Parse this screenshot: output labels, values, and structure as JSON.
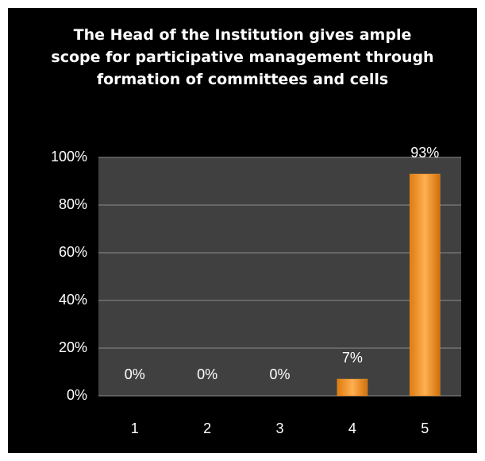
{
  "chart_data": {
    "type": "bar",
    "title": "The Head of the Institution gives ample scope for participative management through formation of committees and cells",
    "categories": [
      "1",
      "2",
      "3",
      "4",
      "5"
    ],
    "values": [
      0,
      0,
      0,
      7,
      93
    ],
    "value_labels": [
      "0%",
      "0%",
      "0%",
      "7%",
      "93%"
    ],
    "color": "#f59a2a",
    "ylim": [
      0,
      100
    ],
    "yticks": [
      {
        "value": 0,
        "label": "0%"
      },
      {
        "value": 20,
        "label": "20%"
      },
      {
        "value": 40,
        "label": "40%"
      },
      {
        "value": 60,
        "label": "60%"
      },
      {
        "value": 80,
        "label": "80%"
      },
      {
        "value": 100,
        "label": "100%"
      }
    ],
    "grid": true
  }
}
